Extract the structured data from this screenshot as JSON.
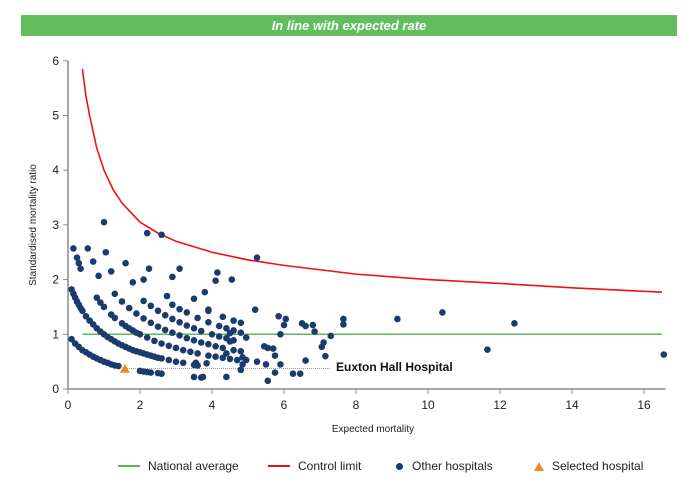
{
  "banner": "In line with expected rate",
  "chart_data": {
    "type": "scatter",
    "xlabel": "Expected mortality",
    "ylabel": "Standardised mortality ratio",
    "xlim": [
      0,
      16.6
    ],
    "ylim": [
      0,
      6
    ],
    "xticks": [
      "0",
      "2",
      "4",
      "6",
      "8",
      "10",
      "12",
      "14",
      "16"
    ],
    "yticks": [
      "0",
      "1",
      "2",
      "3",
      "4",
      "5",
      "6"
    ],
    "grid": false,
    "legend_position": "bottom",
    "colors": {
      "national": "#5cb85c",
      "control": "#ee1111",
      "other": "#1b3b6f",
      "selected": "#f08a1c"
    },
    "national_average": {
      "name": "National average",
      "y": 1,
      "x_range": [
        0.4,
        16.5
      ]
    },
    "control_limit": {
      "name": "Control limit",
      "points": [
        [
          0.4,
          5.85
        ],
        [
          0.5,
          5.35
        ],
        [
          0.6,
          5.0
        ],
        [
          0.8,
          4.4
        ],
        [
          1.0,
          4.0
        ],
        [
          1.25,
          3.65
        ],
        [
          1.5,
          3.4
        ],
        [
          2,
          3.05
        ],
        [
          2.5,
          2.85
        ],
        [
          3,
          2.7
        ],
        [
          4,
          2.5
        ],
        [
          5,
          2.36
        ],
        [
          6,
          2.26
        ],
        [
          8,
          2.1
        ],
        [
          10,
          2.0
        ],
        [
          12,
          1.93
        ],
        [
          14,
          1.85
        ],
        [
          16.5,
          1.77
        ]
      ]
    },
    "other_hospitals": {
      "name": "Other hospitals",
      "points": [
        [
          0.1,
          0.91
        ],
        [
          0.2,
          0.83
        ],
        [
          0.3,
          0.77
        ],
        [
          0.4,
          0.71
        ],
        [
          0.5,
          0.67
        ],
        [
          0.6,
          0.63
        ],
        [
          0.7,
          0.59
        ],
        [
          0.8,
          0.56
        ],
        [
          0.9,
          0.53
        ],
        [
          1.0,
          0.5
        ],
        [
          1.1,
          0.48
        ],
        [
          1.2,
          0.45
        ],
        [
          1.3,
          0.43
        ],
        [
          1.4,
          0.42
        ],
        [
          2.0,
          0.33
        ],
        [
          2.1,
          0.32
        ],
        [
          2.2,
          0.31
        ],
        [
          2.3,
          0.3
        ],
        [
          2.5,
          0.29
        ],
        [
          2.6,
          0.28
        ],
        [
          0.1,
          1.82
        ],
        [
          0.15,
          1.74
        ],
        [
          0.2,
          1.67
        ],
        [
          0.25,
          1.6
        ],
        [
          0.3,
          1.54
        ],
        [
          0.35,
          1.48
        ],
        [
          0.4,
          1.43
        ],
        [
          0.5,
          1.33
        ],
        [
          0.6,
          1.25
        ],
        [
          0.7,
          1.18
        ],
        [
          0.8,
          1.11
        ],
        [
          0.9,
          1.05
        ],
        [
          1.0,
          1.0
        ],
        [
          1.1,
          0.95
        ],
        [
          1.2,
          0.91
        ],
        [
          1.3,
          0.87
        ],
        [
          1.4,
          0.83
        ],
        [
          1.5,
          0.8
        ],
        [
          1.6,
          0.77
        ],
        [
          1.7,
          0.74
        ],
        [
          1.8,
          0.71
        ],
        [
          1.9,
          0.69
        ],
        [
          2.0,
          0.67
        ],
        [
          2.1,
          0.65
        ],
        [
          2.2,
          0.63
        ],
        [
          2.3,
          0.61
        ],
        [
          2.4,
          0.59
        ],
        [
          2.5,
          0.57
        ],
        [
          2.6,
          0.56
        ],
        [
          2.8,
          0.53
        ],
        [
          3.0,
          0.5
        ],
        [
          3.2,
          0.48
        ],
        [
          3.5,
          0.44
        ],
        [
          3.6,
          0.43
        ],
        [
          0.8,
          1.67
        ],
        [
          0.9,
          1.58
        ],
        [
          1.0,
          1.5
        ],
        [
          1.2,
          1.36
        ],
        [
          1.3,
          1.3
        ],
        [
          1.5,
          1.2
        ],
        [
          1.6,
          1.15
        ],
        [
          1.7,
          1.11
        ],
        [
          1.8,
          1.07
        ],
        [
          1.9,
          1.03
        ],
        [
          2.0,
          1.0
        ],
        [
          2.2,
          0.94
        ],
        [
          2.4,
          0.88
        ],
        [
          2.6,
          0.83
        ],
        [
          2.8,
          0.79
        ],
        [
          3.0,
          0.75
        ],
        [
          3.2,
          0.71
        ],
        [
          3.4,
          0.68
        ],
        [
          3.6,
          0.65
        ],
        [
          3.9,
          0.61
        ],
        [
          4.1,
          0.59
        ],
        [
          4.3,
          0.57
        ],
        [
          4.5,
          0.55
        ],
        [
          4.7,
          0.53
        ],
        [
          1.3,
          1.74
        ],
        [
          1.5,
          1.6
        ],
        [
          1.7,
          1.48
        ],
        [
          1.9,
          1.38
        ],
        [
          2.1,
          1.29
        ],
        [
          2.3,
          1.21
        ],
        [
          2.5,
          1.14
        ],
        [
          2.7,
          1.08
        ],
        [
          2.9,
          1.03
        ],
        [
          3.1,
          0.98
        ],
        [
          3.3,
          0.93
        ],
        [
          3.5,
          0.89
        ],
        [
          3.7,
          0.85
        ],
        [
          3.9,
          0.82
        ],
        [
          4.1,
          0.78
        ],
        [
          4.3,
          0.75
        ],
        [
          4.6,
          0.71
        ],
        [
          4.8,
          0.69
        ],
        [
          2.1,
          1.61
        ],
        [
          2.3,
          1.52
        ],
        [
          2.5,
          1.43
        ],
        [
          2.7,
          1.35
        ],
        [
          2.9,
          1.28
        ],
        [
          3.1,
          1.22
        ],
        [
          3.3,
          1.16
        ],
        [
          3.5,
          1.11
        ],
        [
          3.7,
          1.06
        ],
        [
          4.0,
          1.0
        ],
        [
          4.2,
          0.96
        ],
        [
          4.4,
          0.93
        ],
        [
          4.6,
          0.89
        ],
        [
          2.9,
          1.54
        ],
        [
          3.1,
          1.46
        ],
        [
          3.3,
          1.4
        ],
        [
          3.6,
          1.3
        ],
        [
          3.9,
          1.22
        ],
        [
          4.2,
          1.15
        ],
        [
          4.4,
          1.11
        ],
        [
          4.6,
          1.07
        ],
        [
          4.8,
          1.03
        ],
        [
          3.9,
          1.43
        ],
        [
          4.3,
          1.32
        ],
        [
          4.6,
          1.25
        ],
        [
          4.8,
          1.21
        ],
        [
          0.15,
          2.57
        ],
        [
          0.55,
          2.57
        ],
        [
          0.25,
          2.4
        ],
        [
          0.3,
          2.3
        ],
        [
          0.35,
          2.2
        ],
        [
          0.7,
          2.33
        ],
        [
          1.0,
          3.05
        ],
        [
          1.05,
          2.5
        ],
        [
          0.85,
          2.07
        ],
        [
          1.2,
          2.15
        ],
        [
          1.6,
          2.3
        ],
        [
          2.2,
          2.85
        ],
        [
          2.6,
          2.82
        ],
        [
          2.25,
          2.2
        ],
        [
          1.8,
          1.95
        ],
        [
          2.1,
          2.0
        ],
        [
          2.9,
          2.05
        ],
        [
          3.1,
          2.2
        ],
        [
          4.15,
          2.13
        ],
        [
          4.1,
          1.98
        ],
        [
          4.55,
          2.0
        ],
        [
          5.25,
          2.4
        ],
        [
          3.8,
          1.77
        ],
        [
          2.75,
          1.7
        ],
        [
          3.5,
          1.65
        ],
        [
          3.9,
          1.45
        ],
        [
          5.2,
          1.45
        ],
        [
          5.85,
          1.33
        ],
        [
          6.05,
          1.28
        ],
        [
          6.0,
          1.17
        ],
        [
          5.9,
          1.0
        ],
        [
          6.5,
          1.2
        ],
        [
          6.6,
          1.15
        ],
        [
          6.8,
          1.17
        ],
        [
          6.85,
          1.05
        ],
        [
          7.65,
          1.28
        ],
        [
          7.65,
          1.18
        ],
        [
          9.15,
          1.28
        ],
        [
          10.4,
          1.4
        ],
        [
          12.4,
          1.2
        ],
        [
          11.65,
          0.72
        ],
        [
          16.55,
          0.63
        ],
        [
          7.3,
          0.97
        ],
        [
          7.1,
          0.85
        ],
        [
          7.05,
          0.77
        ],
        [
          7.15,
          0.6
        ],
        [
          6.6,
          0.52
        ],
        [
          6.25,
          0.28
        ],
        [
          6.45,
          0.28
        ],
        [
          5.55,
          0.15
        ],
        [
          5.75,
          0.3
        ],
        [
          5.9,
          0.45
        ],
        [
          5.75,
          0.61
        ],
        [
          5.7,
          0.74
        ],
        [
          5.55,
          0.75
        ],
        [
          5.45,
          0.78
        ],
        [
          4.85,
          0.58
        ],
        [
          4.85,
          0.45
        ],
        [
          4.8,
          0.35
        ],
        [
          4.4,
          0.22
        ],
        [
          3.5,
          0.22
        ],
        [
          3.75,
          0.22
        ],
        [
          3.7,
          0.21
        ],
        [
          4.4,
          0.65
        ],
        [
          4.5,
          0.87
        ],
        [
          4.5,
          1.02
        ],
        [
          3.55,
          0.48
        ],
        [
          3.85,
          0.47
        ],
        [
          4.95,
          0.53
        ],
        [
          5.25,
          0.5
        ],
        [
          5.5,
          0.45
        ],
        [
          4.95,
          0.94
        ]
      ]
    },
    "selected_hospital": {
      "name": "Selected hospital",
      "label": "Euxton Hall Hospital",
      "x": 1.58,
      "y": 0.37
    }
  }
}
